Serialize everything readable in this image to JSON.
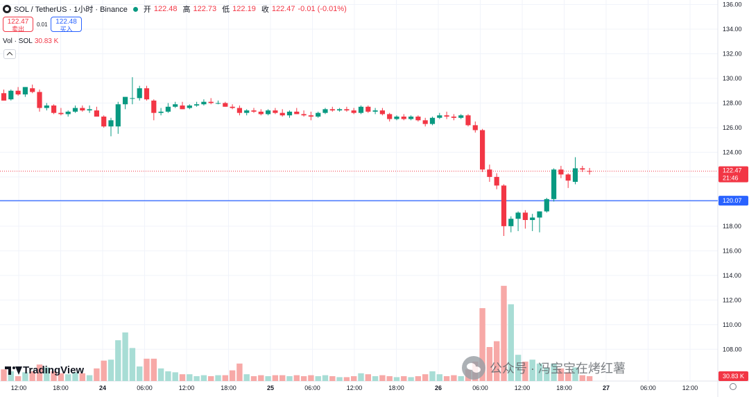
{
  "header": {
    "symbol": "SOL / TetherUS · 1小时 · Binance",
    "open_label": "开",
    "open": "122.48",
    "high_label": "高",
    "high": "122.73",
    "low_label": "低",
    "low": "122.19",
    "close_label": "收",
    "close": "122.47",
    "change": "-0.01 (-0.01%)"
  },
  "quote": {
    "sell_price": "122.47",
    "sell_label": "卖出",
    "spread": "0.01",
    "buy_price": "122.48",
    "buy_label": "买入"
  },
  "volume_legend": {
    "label": "Vol · SOL",
    "value": "30.83 K"
  },
  "brand": "TradingView",
  "watermark": "公众号 · 冯宝宝在烤红薯",
  "colors": {
    "up": "#089981",
    "down": "#f23645",
    "line": "#2962ff",
    "up_vol": "#a8ddd5",
    "down_vol": "#f7a9a7"
  },
  "chart_data": {
    "type": "candlestick",
    "y_axis_ticks": [
      "136.00",
      "134.00",
      "132.00",
      "130.00",
      "128.00",
      "126.00",
      "124.00",
      "122.00",
      "120.00",
      "118.00",
      "116.00",
      "114.00",
      "112.00",
      "110.00",
      "108.00"
    ],
    "ylim": [
      107,
      136.2
    ],
    "x_axis_ticks": [
      "12:00",
      "18:00",
      "24",
      "06:00",
      "12:00",
      "18:00",
      "25",
      "06:00",
      "12:00",
      "18:00",
      "26",
      "06:00",
      "12:00",
      "18:00",
      "27",
      "06:00",
      "12:00"
    ],
    "last_price": {
      "value": "122.47",
      "countdown": "21:46"
    },
    "horizontal_line": {
      "value": "120.07"
    },
    "volume_last_label": "30.83 K",
    "candles": [
      {
        "o": 128.8,
        "h": 129.1,
        "l": 128.2,
        "c": 128.2,
        "v": 0.12
      },
      {
        "o": 128.3,
        "h": 129.1,
        "l": 128.2,
        "c": 129.0,
        "v": 0.1
      },
      {
        "o": 129.0,
        "h": 129.3,
        "l": 128.6,
        "c": 128.7,
        "v": 0.05
      },
      {
        "o": 128.7,
        "h": 129.3,
        "l": 128.5,
        "c": 129.3,
        "v": 0.09
      },
      {
        "o": 129.2,
        "h": 129.5,
        "l": 128.8,
        "c": 128.9,
        "v": 0.1
      },
      {
        "o": 128.9,
        "h": 129.1,
        "l": 127.3,
        "c": 127.6,
        "v": 0.17
      },
      {
        "o": 127.6,
        "h": 128.0,
        "l": 127.4,
        "c": 127.8,
        "v": 0.14
      },
      {
        "o": 127.8,
        "h": 127.9,
        "l": 127.1,
        "c": 127.2,
        "v": 0.1
      },
      {
        "o": 127.2,
        "h": 127.6,
        "l": 127.0,
        "c": 127.1,
        "v": 0.08
      },
      {
        "o": 127.1,
        "h": 127.4,
        "l": 126.9,
        "c": 127.3,
        "v": 0.07
      },
      {
        "o": 127.3,
        "h": 127.8,
        "l": 127.2,
        "c": 127.6,
        "v": 0.09
      },
      {
        "o": 127.6,
        "h": 127.8,
        "l": 127.3,
        "c": 127.4,
        "v": 0.08
      },
      {
        "o": 127.4,
        "h": 127.8,
        "l": 127.2,
        "c": 127.5,
        "v": 0.06
      },
      {
        "o": 127.4,
        "h": 127.7,
        "l": 126.9,
        "c": 126.9,
        "v": 0.13
      },
      {
        "o": 126.9,
        "h": 127.0,
        "l": 126.0,
        "c": 126.1,
        "v": 0.21
      },
      {
        "o": 126.1,
        "h": 126.8,
        "l": 125.3,
        "c": 126.6,
        "v": 0.22
      },
      {
        "o": 126.1,
        "h": 128.1,
        "l": 125.5,
        "c": 127.9,
        "v": 0.42
      },
      {
        "o": 127.9,
        "h": 128.5,
        "l": 127.5,
        "c": 128.5,
        "v": 0.5
      },
      {
        "o": 128.4,
        "h": 130.1,
        "l": 127.9,
        "c": 128.4,
        "v": 0.34
      },
      {
        "o": 128.4,
        "h": 129.4,
        "l": 128.2,
        "c": 129.2,
        "v": 0.15
      },
      {
        "o": 129.2,
        "h": 129.4,
        "l": 128.2,
        "c": 128.3,
        "v": 0.23
      },
      {
        "o": 128.2,
        "h": 128.3,
        "l": 126.6,
        "c": 127.2,
        "v": 0.23
      },
      {
        "o": 127.2,
        "h": 127.6,
        "l": 127.0,
        "c": 127.3,
        "v": 0.13
      },
      {
        "o": 127.3,
        "h": 128.0,
        "l": 127.2,
        "c": 127.7,
        "v": 0.1
      },
      {
        "o": 127.7,
        "h": 128.1,
        "l": 127.6,
        "c": 127.9,
        "v": 0.09
      },
      {
        "o": 127.8,
        "h": 128.1,
        "l": 127.5,
        "c": 127.5,
        "v": 0.07
      },
      {
        "o": 127.6,
        "h": 127.9,
        "l": 127.5,
        "c": 127.8,
        "v": 0.07
      },
      {
        "o": 127.8,
        "h": 128.1,
        "l": 127.7,
        "c": 127.9,
        "v": 0.05
      },
      {
        "o": 127.9,
        "h": 128.3,
        "l": 127.8,
        "c": 128.1,
        "v": 0.06
      },
      {
        "o": 128.1,
        "h": 128.4,
        "l": 127.9,
        "c": 128.0,
        "v": 0.05
      },
      {
        "o": 128.0,
        "h": 128.2,
        "l": 127.9,
        "c": 128.0,
        "v": 0.06
      },
      {
        "o": 128.0,
        "h": 128.1,
        "l": 127.7,
        "c": 127.7,
        "v": 0.06
      },
      {
        "o": 127.7,
        "h": 127.9,
        "l": 127.5,
        "c": 127.6,
        "v": 0.11
      },
      {
        "o": 127.6,
        "h": 127.8,
        "l": 127.0,
        "c": 127.2,
        "v": 0.18
      },
      {
        "o": 127.2,
        "h": 127.5,
        "l": 127.0,
        "c": 127.4,
        "v": 0.07
      },
      {
        "o": 127.4,
        "h": 127.6,
        "l": 127.2,
        "c": 127.3,
        "v": 0.05
      },
      {
        "o": 127.3,
        "h": 127.5,
        "l": 127.0,
        "c": 127.1,
        "v": 0.06
      },
      {
        "o": 127.1,
        "h": 127.5,
        "l": 127.0,
        "c": 127.4,
        "v": 0.05
      },
      {
        "o": 127.4,
        "h": 127.6,
        "l": 127.1,
        "c": 127.2,
        "v": 0.06
      },
      {
        "o": 127.2,
        "h": 127.5,
        "l": 126.9,
        "c": 127.0,
        "v": 0.06
      },
      {
        "o": 127.0,
        "h": 127.4,
        "l": 126.8,
        "c": 127.3,
        "v": 0.05
      },
      {
        "o": 127.3,
        "h": 127.6,
        "l": 127.1,
        "c": 127.1,
        "v": 0.06
      },
      {
        "o": 127.1,
        "h": 127.4,
        "l": 126.9,
        "c": 127.0,
        "v": 0.05
      },
      {
        "o": 127.0,
        "h": 127.3,
        "l": 126.6,
        "c": 126.9,
        "v": 0.06
      },
      {
        "o": 126.9,
        "h": 127.3,
        "l": 126.8,
        "c": 127.2,
        "v": 0.05
      },
      {
        "o": 127.2,
        "h": 127.6,
        "l": 127.1,
        "c": 127.5,
        "v": 0.06
      },
      {
        "o": 127.5,
        "h": 127.7,
        "l": 127.3,
        "c": 127.4,
        "v": 0.05
      },
      {
        "o": 127.4,
        "h": 127.6,
        "l": 127.3,
        "c": 127.5,
        "v": 0.04
      },
      {
        "o": 127.5,
        "h": 127.7,
        "l": 127.3,
        "c": 127.4,
        "v": 0.04
      },
      {
        "o": 127.4,
        "h": 127.6,
        "l": 127.1,
        "c": 127.2,
        "v": 0.05
      },
      {
        "o": 127.2,
        "h": 127.8,
        "l": 127.1,
        "c": 127.7,
        "v": 0.08
      },
      {
        "o": 127.7,
        "h": 127.8,
        "l": 127.2,
        "c": 127.3,
        "v": 0.07
      },
      {
        "o": 127.3,
        "h": 127.6,
        "l": 127.1,
        "c": 127.4,
        "v": 0.05
      },
      {
        "o": 127.4,
        "h": 127.6,
        "l": 127.0,
        "c": 127.1,
        "v": 0.06
      },
      {
        "o": 127.1,
        "h": 127.2,
        "l": 126.5,
        "c": 126.7,
        "v": 0.05
      },
      {
        "o": 126.7,
        "h": 127.0,
        "l": 126.6,
        "c": 126.9,
        "v": 0.04
      },
      {
        "o": 126.9,
        "h": 127.1,
        "l": 126.6,
        "c": 126.7,
        "v": 0.05
      },
      {
        "o": 126.7,
        "h": 127.0,
        "l": 126.6,
        "c": 126.9,
        "v": 0.04
      },
      {
        "o": 126.9,
        "h": 127.0,
        "l": 126.5,
        "c": 126.6,
        "v": 0.05
      },
      {
        "o": 126.6,
        "h": 126.8,
        "l": 126.1,
        "c": 126.3,
        "v": 0.07
      },
      {
        "o": 126.3,
        "h": 126.9,
        "l": 126.2,
        "c": 126.8,
        "v": 0.1
      },
      {
        "o": 126.8,
        "h": 127.2,
        "l": 126.7,
        "c": 127.0,
        "v": 0.07
      },
      {
        "o": 127.0,
        "h": 127.3,
        "l": 126.7,
        "c": 126.9,
        "v": 0.05
      },
      {
        "o": 126.9,
        "h": 127.1,
        "l": 126.6,
        "c": 126.8,
        "v": 0.06
      },
      {
        "o": 126.8,
        "h": 127.1,
        "l": 126.7,
        "c": 127.0,
        "v": 0.05
      },
      {
        "o": 127.0,
        "h": 127.1,
        "l": 126.1,
        "c": 126.2,
        "v": 0.12
      },
      {
        "o": 126.2,
        "h": 126.5,
        "l": 125.6,
        "c": 125.8,
        "v": 0.2
      },
      {
        "o": 125.8,
        "h": 125.9,
        "l": 122.4,
        "c": 122.6,
        "v": 0.75
      },
      {
        "o": 122.6,
        "h": 123.0,
        "l": 121.6,
        "c": 122.0,
        "v": 0.35
      },
      {
        "o": 122.0,
        "h": 122.3,
        "l": 121.0,
        "c": 121.3,
        "v": 0.41
      },
      {
        "o": 121.3,
        "h": 121.4,
        "l": 117.2,
        "c": 118.0,
        "v": 0.98
      },
      {
        "o": 118.0,
        "h": 118.8,
        "l": 117.5,
        "c": 118.6,
        "v": 0.79
      },
      {
        "o": 118.6,
        "h": 119.2,
        "l": 117.6,
        "c": 119.1,
        "v": 0.27
      },
      {
        "o": 119.1,
        "h": 119.3,
        "l": 117.8,
        "c": 118.5,
        "v": 0.2
      },
      {
        "o": 118.5,
        "h": 119.0,
        "l": 117.6,
        "c": 118.7,
        "v": 0.22
      },
      {
        "o": 118.7,
        "h": 119.2,
        "l": 117.5,
        "c": 119.2,
        "v": 0.18
      },
      {
        "o": 119.2,
        "h": 120.3,
        "l": 119.1,
        "c": 120.2,
        "v": 0.14
      },
      {
        "o": 120.2,
        "h": 122.7,
        "l": 120.0,
        "c": 122.6,
        "v": 0.18
      },
      {
        "o": 122.6,
        "h": 122.9,
        "l": 121.9,
        "c": 122.2,
        "v": 0.13
      },
      {
        "o": 122.2,
        "h": 122.3,
        "l": 121.1,
        "c": 121.7,
        "v": 0.09
      },
      {
        "o": 121.6,
        "h": 123.6,
        "l": 121.4,
        "c": 122.7,
        "v": 0.14
      },
      {
        "o": 122.7,
        "h": 122.9,
        "l": 122.4,
        "c": 122.6,
        "v": 0.06
      },
      {
        "o": 122.48,
        "h": 122.73,
        "l": 122.19,
        "c": 122.47,
        "v": 0.05
      }
    ]
  }
}
